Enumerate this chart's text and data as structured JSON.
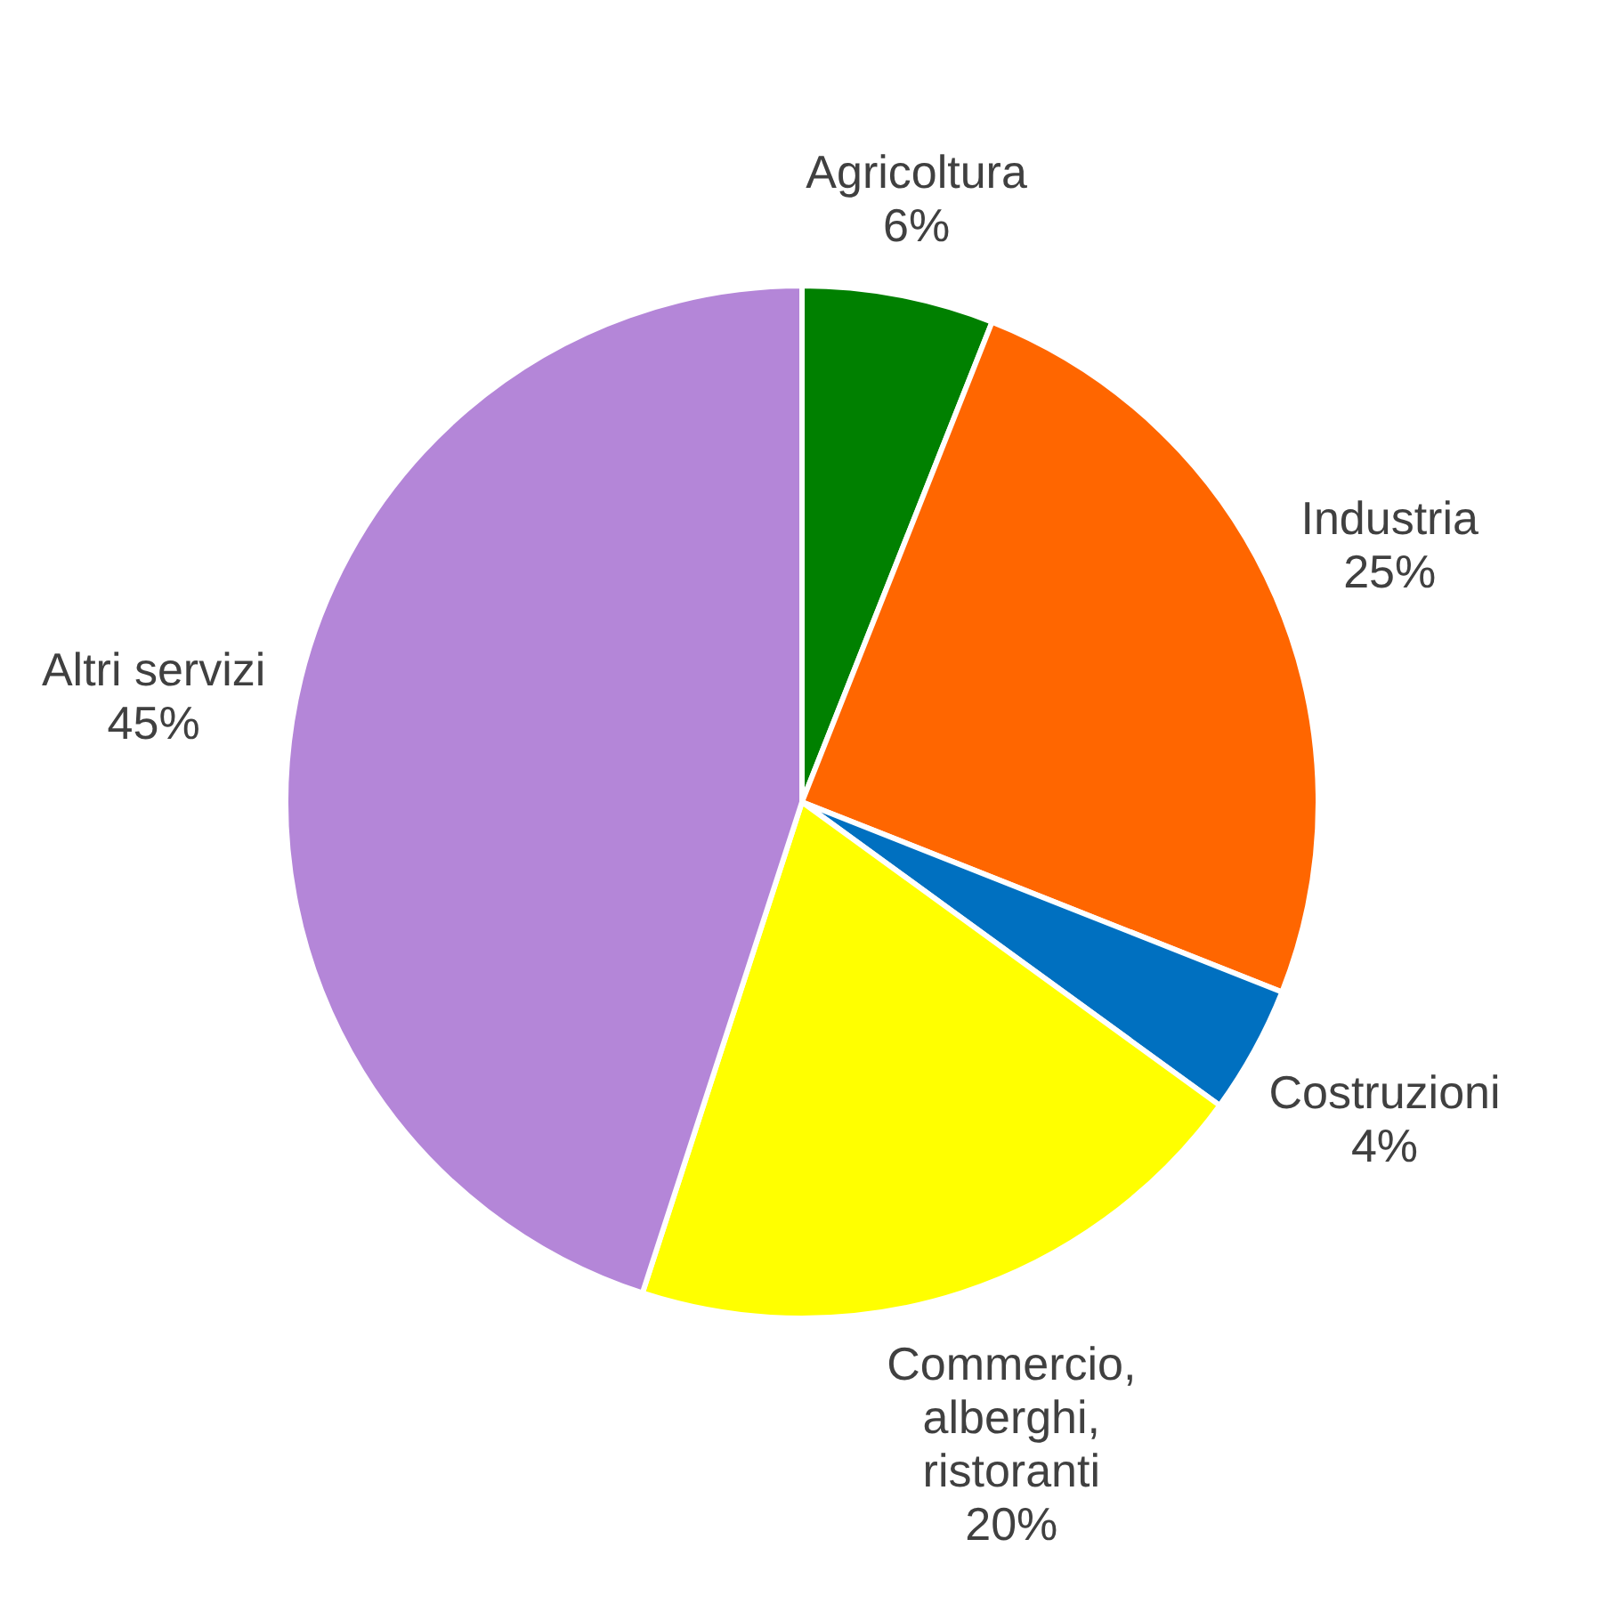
{
  "chart_data": {
    "type": "pie",
    "categories": [
      "Agricoltura",
      "Industria",
      "Costruzioni",
      "Commercio, alberghi, ristoranti",
      "Altri servizi"
    ],
    "values": [
      6,
      25,
      4,
      20,
      45
    ],
    "value_labels": [
      "6%",
      "25%",
      "4%",
      "20%",
      "45%"
    ],
    "colors": [
      "#008000",
      "#ff6600",
      "#0070c0",
      "#ffff00",
      "#b486d8"
    ]
  }
}
